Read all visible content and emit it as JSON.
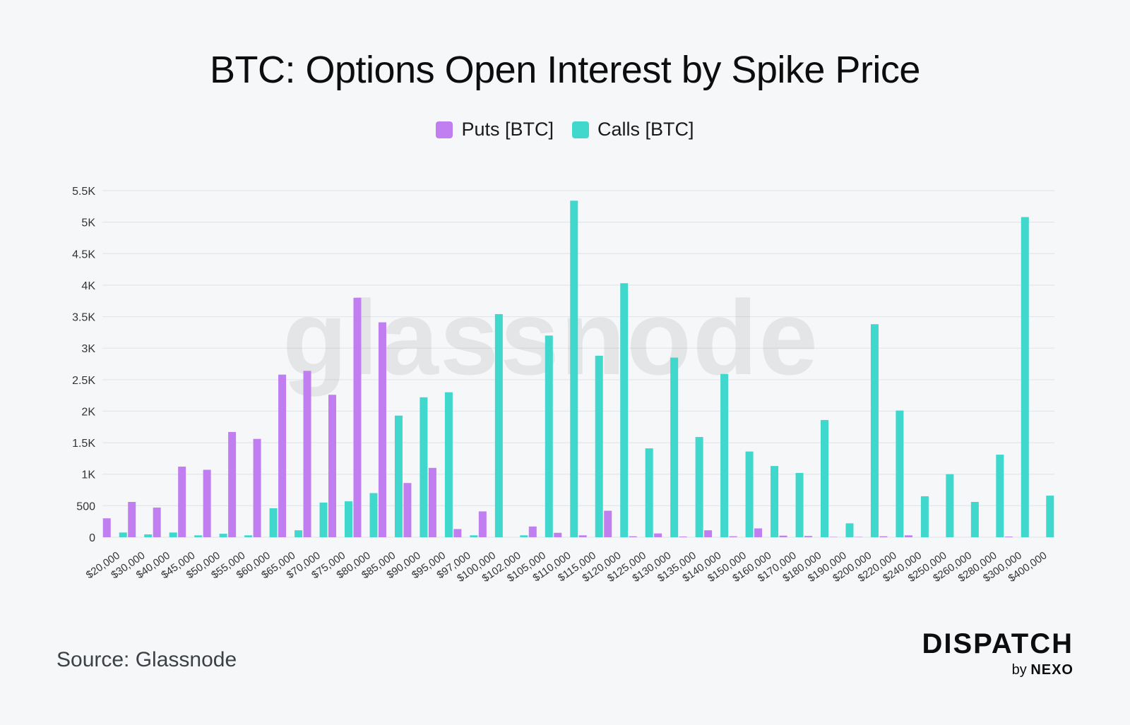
{
  "title": "BTC: Options Open Interest by Spike Price",
  "source": "Source: Glassnode",
  "brand": {
    "name": "DISPATCH",
    "by": "by",
    "company": "NEXO"
  },
  "watermark": "glassnode",
  "colors": {
    "puts": "#c07ef1",
    "calls": "#40d7cd",
    "grid": "#e3e6ea",
    "text": "#333333"
  },
  "chart_data": {
    "type": "bar",
    "title": "BTC: Options Open Interest by Spike Price",
    "xlabel": "",
    "ylabel": "",
    "ylim": [
      0,
      5500
    ],
    "yticks": [
      0,
      500,
      1000,
      1500,
      2000,
      2500,
      3000,
      3500,
      4000,
      4500,
      5000,
      5500
    ],
    "ytick_labels": [
      "0",
      "500",
      "1K",
      "1.5K",
      "2K",
      "2.5K",
      "3K",
      "3.5K",
      "4K",
      "4.5K",
      "5K",
      "5.5K"
    ],
    "legend_position": "top-center",
    "grid": true,
    "categories": [
      "$20,000",
      "$30,000",
      "$40,000",
      "$45,000",
      "$50,000",
      "$55,000",
      "$60,000",
      "$65,000",
      "$70,000",
      "$75,000",
      "$80,000",
      "$85,000",
      "$90,000",
      "$95,000",
      "$97,000",
      "$100,000",
      "$102,000",
      "$105,000",
      "$110,000",
      "$115,000",
      "$120,000",
      "$125,000",
      "$130,000",
      "$135,000",
      "$140,000",
      "$150,000",
      "$160,000",
      "$170,000",
      "$180,000",
      "$190,000",
      "$200,000",
      "$220,000",
      "$240,000",
      "$250,000",
      "$260,000",
      "$280,000",
      "$300,000",
      "$400,000"
    ],
    "series": [
      {
        "name": "Puts [BTC]",
        "values": [
          300,
          560,
          470,
          1120,
          1070,
          1670,
          1560,
          2580,
          2640,
          2260,
          3800,
          3410,
          860,
          1100,
          130,
          410,
          0,
          170,
          70,
          30,
          420,
          15,
          60,
          10,
          110,
          15,
          140,
          25,
          20,
          5,
          5,
          15,
          30,
          0,
          0,
          0,
          10,
          0
        ]
      },
      {
        "name": "Calls [BTC]",
        "values": [
          75,
          45,
          75,
          30,
          55,
          30,
          460,
          110,
          550,
          570,
          700,
          1930,
          2220,
          2300,
          30,
          3540,
          30,
          3200,
          5340,
          2880,
          4030,
          1410,
          2850,
          1590,
          2590,
          1360,
          1130,
          1020,
          1860,
          220,
          3380,
          2010,
          650,
          1000,
          560,
          1310,
          5080,
          660
        ]
      }
    ]
  }
}
